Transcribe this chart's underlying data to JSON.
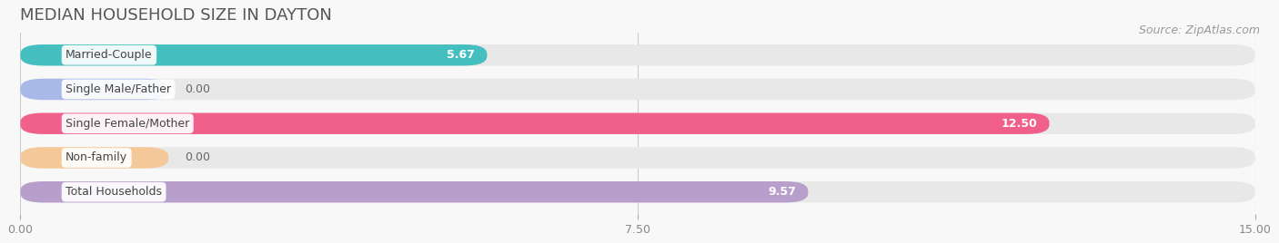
{
  "title": "MEDIAN HOUSEHOLD SIZE IN DAYTON",
  "source": "Source: ZipAtlas.com",
  "categories": [
    "Married-Couple",
    "Single Male/Father",
    "Single Female/Mother",
    "Non-family",
    "Total Households"
  ],
  "values": [
    5.67,
    0.0,
    12.5,
    0.0,
    9.57
  ],
  "bar_colors": [
    "#45bec0",
    "#a8b8e8",
    "#f0608a",
    "#f5c89a",
    "#b89eca"
  ],
  "bar_bg_color": "#e8e8e8",
  "xlim": [
    0,
    15.0
  ],
  "xticks": [
    0.0,
    7.5,
    15.0
  ],
  "xtick_labels": [
    "0.00",
    "7.50",
    "15.00"
  ],
  "title_fontsize": 13,
  "source_fontsize": 9,
  "value_label_fontsize": 9,
  "cat_label_fontsize": 9,
  "tick_fontsize": 9,
  "background_color": "#f8f8f8",
  "bar_height": 0.62,
  "zero_bar_width": 1.8
}
